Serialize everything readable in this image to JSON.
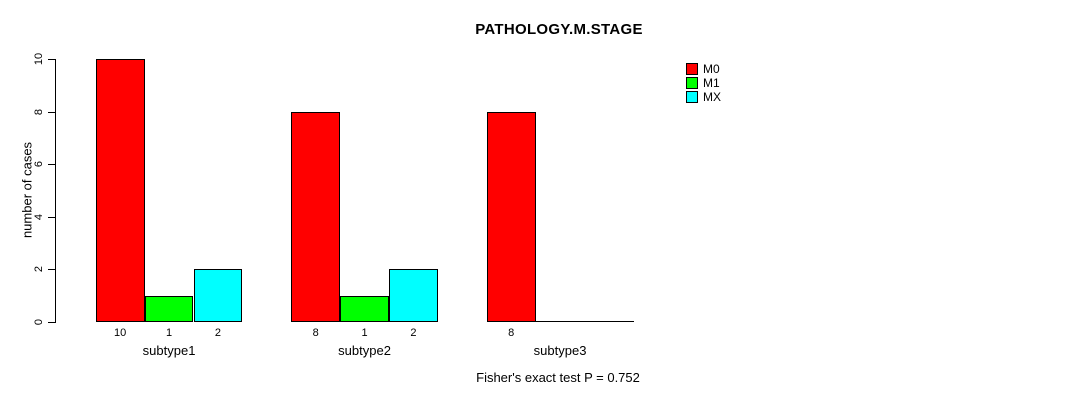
{
  "chart_data": {
    "type": "bar",
    "title": "PATHOLOGY.M.STAGE",
    "ylabel": "number of cases",
    "xlabel": "",
    "categories": [
      "subtype1",
      "subtype2",
      "subtype3"
    ],
    "series": [
      {
        "name": "M0",
        "color": "#ff0000",
        "values": [
          10,
          8,
          8
        ]
      },
      {
        "name": "M1",
        "color": "#00ff00",
        "values": [
          1,
          1,
          0
        ]
      },
      {
        "name": "MX",
        "color": "#00ffff",
        "values": [
          2,
          2,
          0
        ]
      }
    ],
    "ylim": [
      0,
      10
    ],
    "yticks": [
      0,
      2,
      4,
      6,
      8,
      10
    ],
    "grid": false,
    "legend_position": "top-right",
    "bar_value_labels": [
      [
        "10",
        "1",
        "2"
      ],
      [
        "8",
        "1",
        "2"
      ],
      [
        "8",
        "",
        ""
      ]
    ],
    "annotation": "Fisher's exact test P = 0.752",
    "colors": {
      "axis": "#000000",
      "text": "#000000",
      "background": "#ffffff"
    }
  }
}
